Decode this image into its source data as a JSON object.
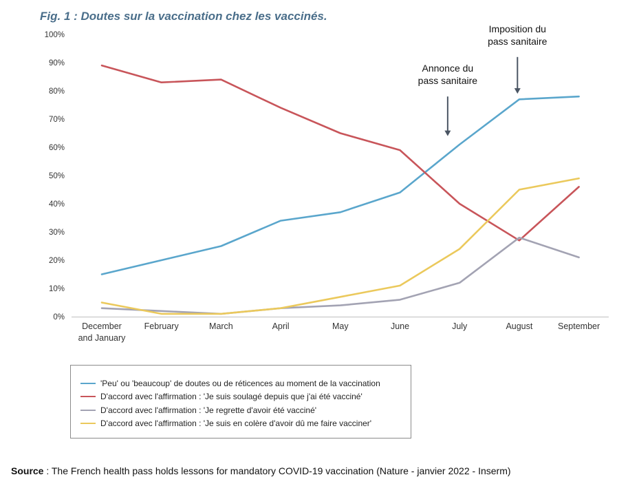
{
  "title": "Fig. 1 : Doutes sur la vaccination chez les vaccinés.",
  "source": {
    "label": "Source",
    "text": " : The French health pass holds lessons for mandatory COVID-19 vaccination (Nature - janvier 2022 - Inserm)"
  },
  "chart_data": {
    "type": "line",
    "categories": [
      [
        "December",
        "and January"
      ],
      [
        "February"
      ],
      [
        "March"
      ],
      [
        "April"
      ],
      [
        "May"
      ],
      [
        "June"
      ],
      [
        "July"
      ],
      [
        "August"
      ],
      [
        "September"
      ]
    ],
    "ylim": [
      0,
      100
    ],
    "yticks": [
      0,
      10,
      20,
      30,
      40,
      50,
      60,
      70,
      80,
      90,
      100
    ],
    "ytick_suffix": "%",
    "grid": false,
    "legend_position": "bottom",
    "series": [
      {
        "name": "'Peu' ou 'beaucoup' de doutes ou de réticences au moment de la vaccination",
        "color": "#5aa6cc",
        "values": [
          15,
          20,
          25,
          34,
          37,
          44,
          61,
          77,
          78
        ]
      },
      {
        "name": "D'accord avec l'affirmation : 'Je suis soulagé depuis que j'ai été vacciné'",
        "color": "#c8555a",
        "values": [
          89,
          83,
          84,
          74,
          65,
          59,
          40,
          27,
          46
        ]
      },
      {
        "name": "D'accord avec l'affirmation : 'Je regrette d'avoir été vacciné'",
        "color": "#a3a3b3",
        "values": [
          3,
          2,
          1,
          3,
          4,
          6,
          12,
          28,
          21
        ]
      },
      {
        "name": "D'accord avec l'affirmation : 'Je suis en colère d'avoir dû me faire vacciner'",
        "color": "#ebc95c",
        "values": [
          5,
          1,
          1,
          3,
          7,
          11,
          24,
          45,
          49
        ]
      }
    ],
    "annotations": [
      {
        "lines": [
          "Annonce du",
          "pass sanitaire"
        ],
        "x": 5.8,
        "y_from": 78,
        "y_to": 64
      },
      {
        "lines": [
          "Imposition du",
          "pass sanitaire"
        ],
        "x": 6.97,
        "y_from": 92,
        "y_to": 79
      }
    ]
  }
}
